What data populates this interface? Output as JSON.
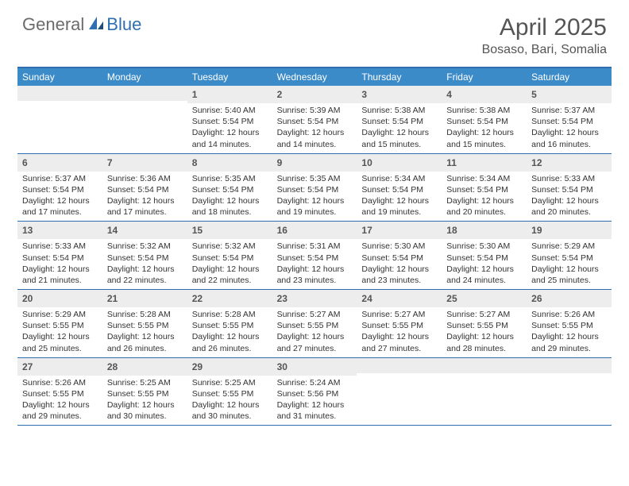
{
  "logo": {
    "part1": "General",
    "part2": "Blue"
  },
  "title": "April 2025",
  "location": "Bosaso, Bari, Somalia",
  "colors": {
    "header_bg": "#3b8bc9",
    "border": "#2f6fb0",
    "daynum_bg": "#ededed",
    "text": "#333333",
    "logo_gray": "#6b6b6b",
    "logo_blue": "#2f6fb0"
  },
  "weekdays": [
    "Sunday",
    "Monday",
    "Tuesday",
    "Wednesday",
    "Thursday",
    "Friday",
    "Saturday"
  ],
  "weeks": [
    [
      null,
      null,
      {
        "n": "1",
        "sr": "Sunrise: 5:40 AM",
        "ss": "Sunset: 5:54 PM",
        "d1": "Daylight: 12 hours",
        "d2": "and 14 minutes."
      },
      {
        "n": "2",
        "sr": "Sunrise: 5:39 AM",
        "ss": "Sunset: 5:54 PM",
        "d1": "Daylight: 12 hours",
        "d2": "and 14 minutes."
      },
      {
        "n": "3",
        "sr": "Sunrise: 5:38 AM",
        "ss": "Sunset: 5:54 PM",
        "d1": "Daylight: 12 hours",
        "d2": "and 15 minutes."
      },
      {
        "n": "4",
        "sr": "Sunrise: 5:38 AM",
        "ss": "Sunset: 5:54 PM",
        "d1": "Daylight: 12 hours",
        "d2": "and 15 minutes."
      },
      {
        "n": "5",
        "sr": "Sunrise: 5:37 AM",
        "ss": "Sunset: 5:54 PM",
        "d1": "Daylight: 12 hours",
        "d2": "and 16 minutes."
      }
    ],
    [
      {
        "n": "6",
        "sr": "Sunrise: 5:37 AM",
        "ss": "Sunset: 5:54 PM",
        "d1": "Daylight: 12 hours",
        "d2": "and 17 minutes."
      },
      {
        "n": "7",
        "sr": "Sunrise: 5:36 AM",
        "ss": "Sunset: 5:54 PM",
        "d1": "Daylight: 12 hours",
        "d2": "and 17 minutes."
      },
      {
        "n": "8",
        "sr": "Sunrise: 5:35 AM",
        "ss": "Sunset: 5:54 PM",
        "d1": "Daylight: 12 hours",
        "d2": "and 18 minutes."
      },
      {
        "n": "9",
        "sr": "Sunrise: 5:35 AM",
        "ss": "Sunset: 5:54 PM",
        "d1": "Daylight: 12 hours",
        "d2": "and 19 minutes."
      },
      {
        "n": "10",
        "sr": "Sunrise: 5:34 AM",
        "ss": "Sunset: 5:54 PM",
        "d1": "Daylight: 12 hours",
        "d2": "and 19 minutes."
      },
      {
        "n": "11",
        "sr": "Sunrise: 5:34 AM",
        "ss": "Sunset: 5:54 PM",
        "d1": "Daylight: 12 hours",
        "d2": "and 20 minutes."
      },
      {
        "n": "12",
        "sr": "Sunrise: 5:33 AM",
        "ss": "Sunset: 5:54 PM",
        "d1": "Daylight: 12 hours",
        "d2": "and 20 minutes."
      }
    ],
    [
      {
        "n": "13",
        "sr": "Sunrise: 5:33 AM",
        "ss": "Sunset: 5:54 PM",
        "d1": "Daylight: 12 hours",
        "d2": "and 21 minutes."
      },
      {
        "n": "14",
        "sr": "Sunrise: 5:32 AM",
        "ss": "Sunset: 5:54 PM",
        "d1": "Daylight: 12 hours",
        "d2": "and 22 minutes."
      },
      {
        "n": "15",
        "sr": "Sunrise: 5:32 AM",
        "ss": "Sunset: 5:54 PM",
        "d1": "Daylight: 12 hours",
        "d2": "and 22 minutes."
      },
      {
        "n": "16",
        "sr": "Sunrise: 5:31 AM",
        "ss": "Sunset: 5:54 PM",
        "d1": "Daylight: 12 hours",
        "d2": "and 23 minutes."
      },
      {
        "n": "17",
        "sr": "Sunrise: 5:30 AM",
        "ss": "Sunset: 5:54 PM",
        "d1": "Daylight: 12 hours",
        "d2": "and 23 minutes."
      },
      {
        "n": "18",
        "sr": "Sunrise: 5:30 AM",
        "ss": "Sunset: 5:54 PM",
        "d1": "Daylight: 12 hours",
        "d2": "and 24 minutes."
      },
      {
        "n": "19",
        "sr": "Sunrise: 5:29 AM",
        "ss": "Sunset: 5:54 PM",
        "d1": "Daylight: 12 hours",
        "d2": "and 25 minutes."
      }
    ],
    [
      {
        "n": "20",
        "sr": "Sunrise: 5:29 AM",
        "ss": "Sunset: 5:55 PM",
        "d1": "Daylight: 12 hours",
        "d2": "and 25 minutes."
      },
      {
        "n": "21",
        "sr": "Sunrise: 5:28 AM",
        "ss": "Sunset: 5:55 PM",
        "d1": "Daylight: 12 hours",
        "d2": "and 26 minutes."
      },
      {
        "n": "22",
        "sr": "Sunrise: 5:28 AM",
        "ss": "Sunset: 5:55 PM",
        "d1": "Daylight: 12 hours",
        "d2": "and 26 minutes."
      },
      {
        "n": "23",
        "sr": "Sunrise: 5:27 AM",
        "ss": "Sunset: 5:55 PM",
        "d1": "Daylight: 12 hours",
        "d2": "and 27 minutes."
      },
      {
        "n": "24",
        "sr": "Sunrise: 5:27 AM",
        "ss": "Sunset: 5:55 PM",
        "d1": "Daylight: 12 hours",
        "d2": "and 27 minutes."
      },
      {
        "n": "25",
        "sr": "Sunrise: 5:27 AM",
        "ss": "Sunset: 5:55 PM",
        "d1": "Daylight: 12 hours",
        "d2": "and 28 minutes."
      },
      {
        "n": "26",
        "sr": "Sunrise: 5:26 AM",
        "ss": "Sunset: 5:55 PM",
        "d1": "Daylight: 12 hours",
        "d2": "and 29 minutes."
      }
    ],
    [
      {
        "n": "27",
        "sr": "Sunrise: 5:26 AM",
        "ss": "Sunset: 5:55 PM",
        "d1": "Daylight: 12 hours",
        "d2": "and 29 minutes."
      },
      {
        "n": "28",
        "sr": "Sunrise: 5:25 AM",
        "ss": "Sunset: 5:55 PM",
        "d1": "Daylight: 12 hours",
        "d2": "and 30 minutes."
      },
      {
        "n": "29",
        "sr": "Sunrise: 5:25 AM",
        "ss": "Sunset: 5:55 PM",
        "d1": "Daylight: 12 hours",
        "d2": "and 30 minutes."
      },
      {
        "n": "30",
        "sr": "Sunrise: 5:24 AM",
        "ss": "Sunset: 5:56 PM",
        "d1": "Daylight: 12 hours",
        "d2": "and 31 minutes."
      },
      null,
      null,
      null
    ]
  ]
}
